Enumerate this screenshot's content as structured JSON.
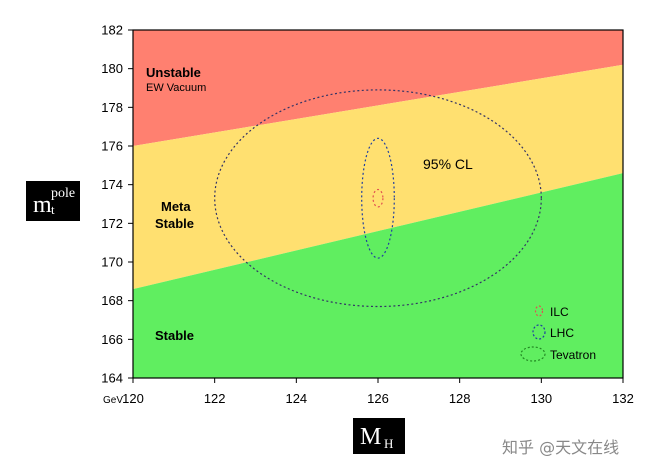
{
  "chart_data": {
    "type": "area",
    "xlabel": "M",
    "xlabel_sub": "H",
    "ylabel": "m",
    "ylabel_sup": "pole",
    "ylabel_sub": "t",
    "x_unit_label": "GeV",
    "xlim": [
      120,
      132
    ],
    "ylim": [
      164,
      182
    ],
    "x_ticks": [
      "120",
      "122",
      "124",
      "126",
      "128",
      "130",
      "132"
    ],
    "y_ticks": [
      "164",
      "166",
      "168",
      "170",
      "172",
      "174",
      "176",
      "178",
      "180",
      "182"
    ],
    "regions": [
      {
        "name": "Unstable",
        "sub": "EW Vacuum",
        "color": "#ff8070",
        "lower_boundary": {
          "x": [
            120,
            132
          ],
          "y": [
            176,
            180.2
          ]
        }
      },
      {
        "name": "Meta Stable",
        "color": "#ffe070",
        "lower_boundary": {
          "x": [
            120,
            132
          ],
          "y": [
            168.6,
            174.6
          ]
        }
      },
      {
        "name": "Stable",
        "color": "#60ee60"
      }
    ],
    "ellipses": [
      {
        "name": "Tevatron",
        "center": [
          126,
          173.3
        ],
        "half_width": [
          4.0,
          5.6
        ],
        "color": "#333366"
      },
      {
        "name": "LHC",
        "center": [
          126,
          173.3
        ],
        "half_width": [
          0.4,
          3.1
        ],
        "color": "#1f3fa0"
      },
      {
        "name": "ILC",
        "center": [
          126,
          173.3
        ],
        "half_width": [
          0.12,
          0.45
        ],
        "color": "#e05050"
      }
    ],
    "annotation": "95% CL",
    "legend": {
      "placement": "bottom-right",
      "entries": [
        "ILC",
        "LHC",
        "Tevatron"
      ]
    }
  },
  "watermark": "知乎 @天文在线"
}
